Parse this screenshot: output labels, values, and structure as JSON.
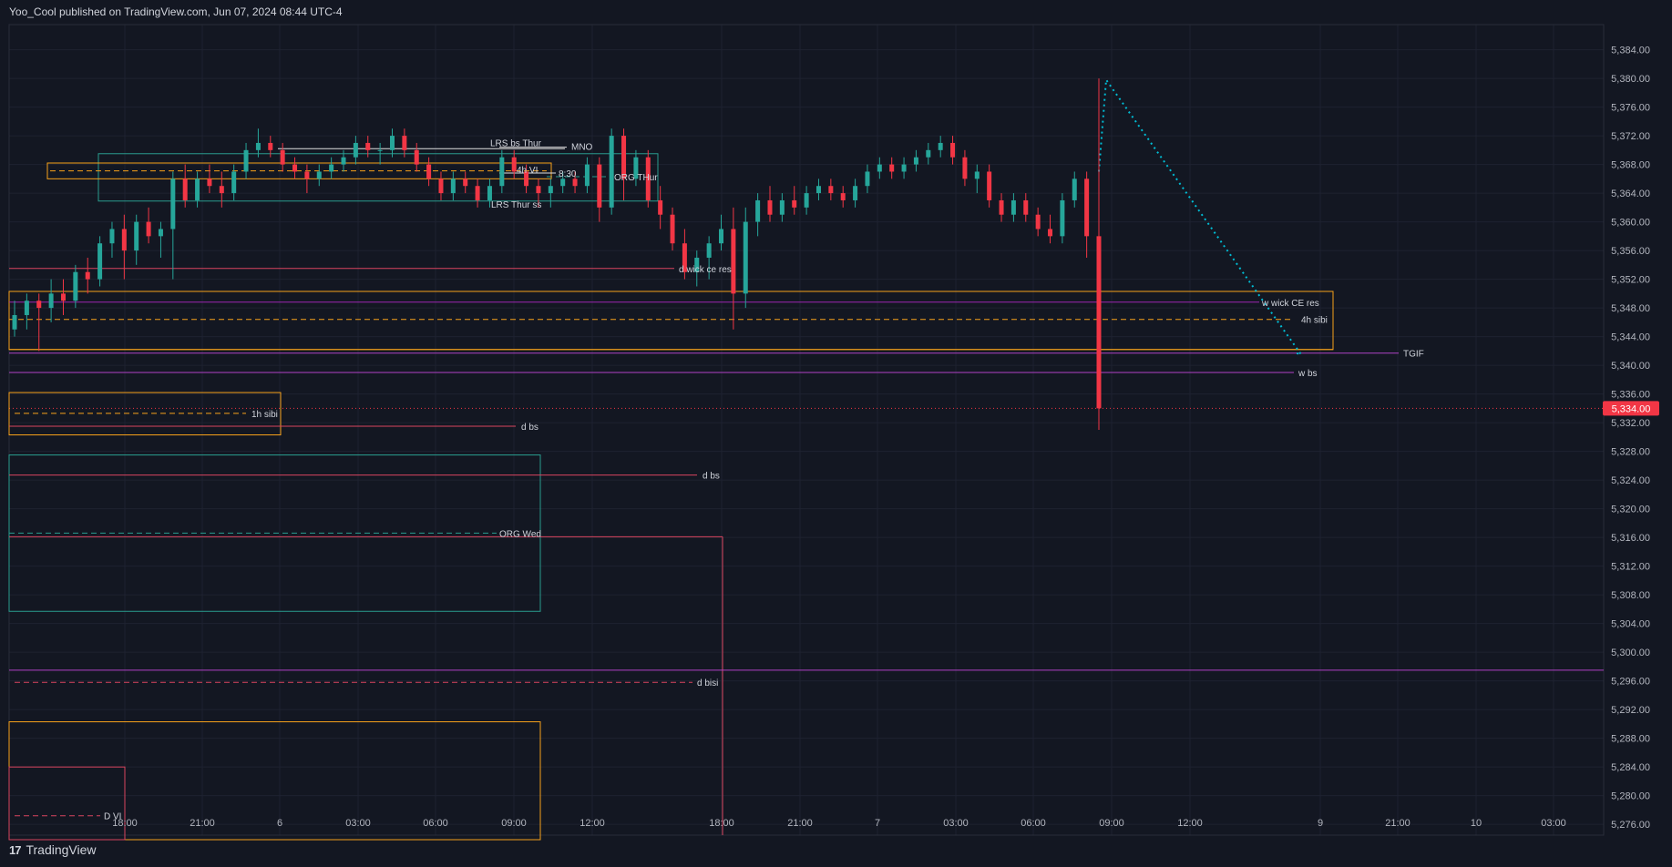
{
  "header": {
    "publish_line": "Yoo_Cool published on TradingView.com, Jun 07, 2024 08:44 UTC-4"
  },
  "footer": {
    "logo_glyph": "17",
    "brand": "TradingView"
  },
  "colors": {
    "background": "#131722",
    "grid": "#1e2230",
    "up": "#26a69a",
    "down": "#f23645",
    "orange": "#f7a21b",
    "teal": "#2a9d8f",
    "red_line": "#d9455f",
    "purple": "#b042c6",
    "cyan_dotted": "#00bcd4",
    "last_price_bg": "#f23645"
  },
  "chart_data": {
    "type": "candlestick",
    "y_axis": {
      "ticks": [
        "5,384.00",
        "5,380.00",
        "5,376.00",
        "5,372.00",
        "5,368.00",
        "5,364.00",
        "5,360.00",
        "5,356.00",
        "5,352.00",
        "5,348.00",
        "5,344.00",
        "5,340.00",
        "5,336.00",
        "5,332.00",
        "5,328.00",
        "5,324.00",
        "5,320.00",
        "5,316.00",
        "5,312.00",
        "5,308.00",
        "5,304.00",
        "5,300.00",
        "5,296.00",
        "5,292.00",
        "5,288.00",
        "5,284.00",
        "5,280.00",
        "5,276.00"
      ],
      "range": [
        5274.5,
        5387.5
      ]
    },
    "x_axis": {
      "ticks": [
        "18:00",
        "21:00",
        "6",
        "03:00",
        "06:00",
        "09:00",
        "12:00",
        "18:00",
        "21:00",
        "7",
        "03:00",
        "06:00",
        "09:00",
        "12:00",
        "9",
        "21:00",
        "10",
        "03:00"
      ]
    },
    "last_price": {
      "value": 5334.0,
      "label": "5,334.00"
    },
    "annotations": {
      "lrs_bs_thur": "LRS bs Thur",
      "mno": "MNO",
      "four_h_vi": "4h VI",
      "eight_thirty": "8:30",
      "org_thur": "ORG THur",
      "lrs_thur_ss": "LRS Thur ss",
      "d_wick_ce_res": "d wick ce res",
      "w_wick_ce_res": "w wick CE res",
      "four_h_sibi": "4h sibi",
      "tgif": "TGIF",
      "w_bs": "w bs",
      "one_h_sibi": "1h sibi",
      "d_bs_1": "d bs",
      "d_bs_2": "d bs",
      "org_wed": "ORG Wed",
      "d_bisi": "d bisi",
      "d_vi": "D VI"
    },
    "levels": {
      "lrs_bs_thur": 5370.2,
      "lrs_thur_ss": 5362.5,
      "d_wick_ce_res": 5353.5,
      "w_wick_ce_res": 5348.8,
      "four_h_sibi_mid": 5346.4,
      "four_h_sibi_top": 5350.3,
      "four_h_sibi_bot": 5342.2,
      "tgif": 5341.7,
      "w_bs": 5339.0,
      "one_h_sibi_top": 5336.2,
      "one_h_sibi_mid": 5333.3,
      "one_h_sibi_bot": 5330.3,
      "d_bs_1": 5331.5,
      "d_bs_2": 5324.7,
      "org_wed_top": 5327.5,
      "org_wed_mid": 5316.6,
      "org_wed_bot": 5305.7,
      "org_wed_red": 5316.1,
      "purple_low": 5297.5,
      "d_bisi": 5295.8,
      "d_bisi_box_top": 5290.3,
      "d_vi_box_top": 5284.0,
      "d_vi": 5277.2,
      "org_thur_top": 5369.5,
      "org_thur_bot": 5362.9,
      "org_thur_mid": 5366.3,
      "orange_box_top": 5368.2,
      "orange_box_bot": 5366.0,
      "orange_box_mid": 5367.1,
      "eight_thirty": 5366.8,
      "mno": 5370.4
    },
    "candles_ohlc": [
      [
        5345,
        5349,
        5344,
        5347
      ],
      [
        5347,
        5350,
        5345,
        5349
      ],
      [
        5349,
        5350,
        5342,
        5348
      ],
      [
        5348,
        5352,
        5346,
        5350
      ],
      [
        5350,
        5352,
        5347,
        5349
      ],
      [
        5349,
        5354,
        5348,
        5353
      ],
      [
        5353,
        5355,
        5350,
        5352
      ],
      [
        5352,
        5358,
        5351,
        5357
      ],
      [
        5357,
        5360,
        5355,
        5359
      ],
      [
        5359,
        5361,
        5352,
        5356
      ],
      [
        5356,
        5361,
        5354,
        5360
      ],
      [
        5360,
        5362,
        5357,
        5358
      ],
      [
        5358,
        5360,
        5355,
        5359
      ],
      [
        5359,
        5367,
        5352,
        5366
      ],
      [
        5366,
        5368,
        5362,
        5363
      ],
      [
        5363,
        5367,
        5362,
        5366
      ],
      [
        5366,
        5368,
        5364,
        5365
      ],
      [
        5365,
        5367,
        5362,
        5364
      ],
      [
        5364,
        5368,
        5363,
        5367
      ],
      [
        5367,
        5371,
        5366,
        5370
      ],
      [
        5370,
        5373,
        5369,
        5371
      ],
      [
        5371,
        5372,
        5369,
        5370
      ],
      [
        5370,
        5371,
        5367,
        5368
      ],
      [
        5368,
        5369,
        5366,
        5367
      ],
      [
        5367,
        5368,
        5364,
        5366
      ],
      [
        5366,
        5368,
        5365,
        5367
      ],
      [
        5367,
        5369,
        5366,
        5368
      ],
      [
        5368,
        5370,
        5367,
        5369
      ],
      [
        5369,
        5372,
        5368,
        5371
      ],
      [
        5371,
        5372,
        5369,
        5370
      ],
      [
        5370,
        5371,
        5368,
        5370
      ],
      [
        5370,
        5373,
        5369,
        5372
      ],
      [
        5372,
        5373,
        5369,
        5370
      ],
      [
        5370,
        5371,
        5367,
        5368
      ],
      [
        5368,
        5369,
        5365,
        5366
      ],
      [
        5366,
        5367,
        5363,
        5364
      ],
      [
        5364,
        5367,
        5363,
        5366
      ],
      [
        5366,
        5367,
        5364,
        5365
      ],
      [
        5365,
        5366,
        5362,
        5363
      ],
      [
        5363,
        5366,
        5362,
        5365
      ],
      [
        5365,
        5370,
        5364,
        5369
      ],
      [
        5369,
        5370,
        5366,
        5367
      ],
      [
        5367,
        5368,
        5364,
        5365
      ],
      [
        5365,
        5366,
        5362,
        5364
      ],
      [
        5364,
        5366,
        5362,
        5365
      ],
      [
        5365,
        5367,
        5364,
        5366
      ],
      [
        5366,
        5367,
        5364,
        5365
      ],
      [
        5365,
        5369,
        5364,
        5368
      ],
      [
        5368,
        5369,
        5360,
        5362
      ],
      [
        5362,
        5373,
        5361,
        5372
      ],
      [
        5372,
        5373,
        5363,
        5366
      ],
      [
        5366,
        5370,
        5365,
        5369
      ],
      [
        5369,
        5370,
        5362,
        5363
      ],
      [
        5363,
        5365,
        5359,
        5361
      ],
      [
        5361,
        5362,
        5356,
        5357
      ],
      [
        5357,
        5359,
        5352,
        5353
      ],
      [
        5353,
        5356,
        5351,
        5355
      ],
      [
        5355,
        5358,
        5352,
        5357
      ],
      [
        5357,
        5361,
        5356,
        5359
      ],
      [
        5359,
        5362,
        5345,
        5350
      ],
      [
        5350,
        5362,
        5348,
        5360
      ],
      [
        5360,
        5364,
        5358,
        5363
      ],
      [
        5363,
        5365,
        5360,
        5361
      ],
      [
        5361,
        5364,
        5360,
        5363
      ],
      [
        5363,
        5365,
        5361,
        5362
      ],
      [
        5362,
        5365,
        5361,
        5364
      ],
      [
        5364,
        5366,
        5363,
        5365
      ],
      [
        5365,
        5366,
        5363,
        5364
      ],
      [
        5364,
        5365,
        5362,
        5363
      ],
      [
        5363,
        5366,
        5362,
        5365
      ],
      [
        5365,
        5368,
        5364,
        5367
      ],
      [
        5367,
        5369,
        5366,
        5368
      ],
      [
        5368,
        5369,
        5366,
        5367
      ],
      [
        5367,
        5369,
        5366,
        5368
      ],
      [
        5368,
        5370,
        5367,
        5369
      ],
      [
        5369,
        5371,
        5368,
        5370
      ],
      [
        5370,
        5372,
        5369,
        5371
      ],
      [
        5371,
        5372,
        5368,
        5369
      ],
      [
        5369,
        5370,
        5365,
        5366
      ],
      [
        5366,
        5368,
        5364,
        5367
      ],
      [
        5367,
        5368,
        5362,
        5363
      ],
      [
        5363,
        5364,
        5360,
        5361
      ],
      [
        5361,
        5364,
        5360,
        5363
      ],
      [
        5363,
        5364,
        5360,
        5361
      ],
      [
        5361,
        5362,
        5358,
        5359
      ],
      [
        5359,
        5361,
        5357,
        5358
      ],
      [
        5358,
        5364,
        5357,
        5363
      ],
      [
        5363,
        5367,
        5362,
        5366
      ],
      [
        5366,
        5367,
        5355,
        5358
      ],
      [
        5358,
        5380,
        5331,
        5334
      ]
    ]
  }
}
